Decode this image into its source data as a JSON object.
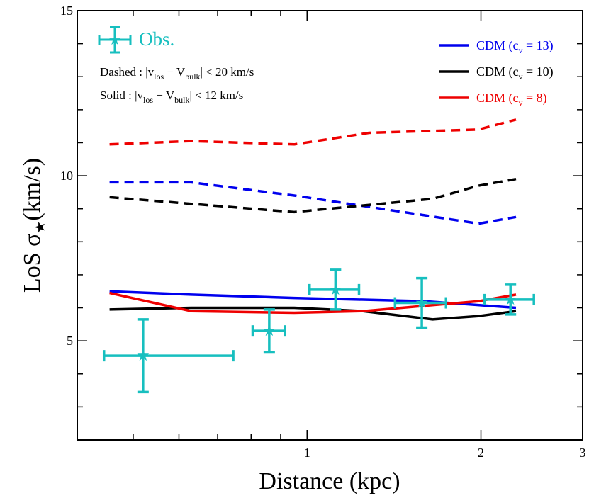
{
  "chart_data": {
    "type": "line",
    "xscale": "log",
    "xlim": [
      0.4,
      3.0
    ],
    "ylim": [
      2.0,
      15.0
    ],
    "xlabel": "Distance (kpc)",
    "ylabel": "LoS σ",
    "ylabel_sub": "★",
    "ylabel_unit": "(km/s)",
    "xticks": [
      1,
      2,
      3
    ],
    "xtick_labels": [
      "1",
      "2",
      "3"
    ],
    "yticks": [
      5,
      10,
      15
    ],
    "ytick_labels": [
      "5",
      "10",
      "15"
    ],
    "colors": {
      "blue": "#0000ee",
      "black": "#000000",
      "red": "#ee0000",
      "obs": "#17bfbf"
    },
    "series": [
      {
        "name": "CDM (c_v = 13) dashed",
        "color": "blue",
        "dash": true,
        "x": [
          0.455,
          0.63,
          0.95,
          1.6,
          1.98,
          2.3
        ],
        "y": [
          9.8,
          9.8,
          9.4,
          8.8,
          8.55,
          8.75
        ]
      },
      {
        "name": "CDM (c_v = 10) dashed",
        "color": "black",
        "dash": true,
        "x": [
          0.455,
          0.63,
          0.95,
          1.65,
          1.98,
          2.3
        ],
        "y": [
          9.35,
          9.15,
          8.9,
          9.3,
          9.7,
          9.9
        ]
      },
      {
        "name": "CDM (c_v = 8) dashed",
        "color": "red",
        "dash": true,
        "x": [
          0.455,
          0.63,
          0.95,
          1.28,
          1.98,
          2.3
        ],
        "y": [
          10.95,
          11.05,
          10.95,
          11.3,
          11.4,
          11.7
        ]
      },
      {
        "name": "CDM (c_v = 13) solid",
        "color": "blue",
        "dash": false,
        "x": [
          0.455,
          0.63,
          0.95,
          1.6,
          2.3
        ],
        "y": [
          6.5,
          6.4,
          6.3,
          6.2,
          6.0
        ]
      },
      {
        "name": "CDM (c_v = 10) solid",
        "color": "black",
        "dash": false,
        "x": [
          0.455,
          0.63,
          0.95,
          1.25,
          1.65,
          1.98,
          2.3
        ],
        "y": [
          5.95,
          6.0,
          6.0,
          5.9,
          5.65,
          5.75,
          5.9
        ]
      },
      {
        "name": "CDM (c_v = 8) solid",
        "color": "red",
        "dash": false,
        "x": [
          0.455,
          0.63,
          0.95,
          1.25,
          1.98,
          2.3
        ],
        "y": [
          6.45,
          5.9,
          5.85,
          5.9,
          6.2,
          6.4
        ]
      }
    ],
    "observations": {
      "name": "Obs.",
      "points": [
        {
          "x": 0.52,
          "y": 4.55,
          "xerr": [
            0.075,
            0.225
          ],
          "yerr": [
            1.1,
            1.1
          ]
        },
        {
          "x": 0.86,
          "y": 5.3,
          "xerr": [
            0.055,
            0.055
          ],
          "yerr": [
            0.65,
            0.65
          ]
        },
        {
          "x": 1.12,
          "y": 6.55,
          "xerr": [
            0.11,
            0.11
          ],
          "yerr": [
            0.6,
            0.6
          ]
        },
        {
          "x": 1.58,
          "y": 6.15,
          "xerr": [
            0.16,
            0.16
          ],
          "yerr": [
            0.75,
            0.75
          ]
        },
        {
          "x": 2.25,
          "y": 6.25,
          "xerr": [
            0.22,
            0.22
          ],
          "yerr": [
            0.45,
            0.45
          ]
        }
      ]
    },
    "legend": {
      "position": "top-right",
      "entries": [
        {
          "label": "CDM (c",
          "sub": "v",
          "tail": " = 13)",
          "color": "blue"
        },
        {
          "label": "CDM (c",
          "sub": "v",
          "tail": " = 10)",
          "color": "black"
        },
        {
          "label": "CDM (c",
          "sub": "v",
          "tail": " = 8)",
          "color": "red"
        }
      ]
    },
    "annotations": {
      "obs_label": "Obs.",
      "dashed_prefix": "Dashed : |v",
      "solid_prefix": "Solid : |v",
      "los_sub": "los",
      "minus_v": " − V",
      "bulk_sub": "bulk",
      "dashed_tail": "| < 20 km/s",
      "solid_tail": "| < 12 km/s"
    }
  }
}
